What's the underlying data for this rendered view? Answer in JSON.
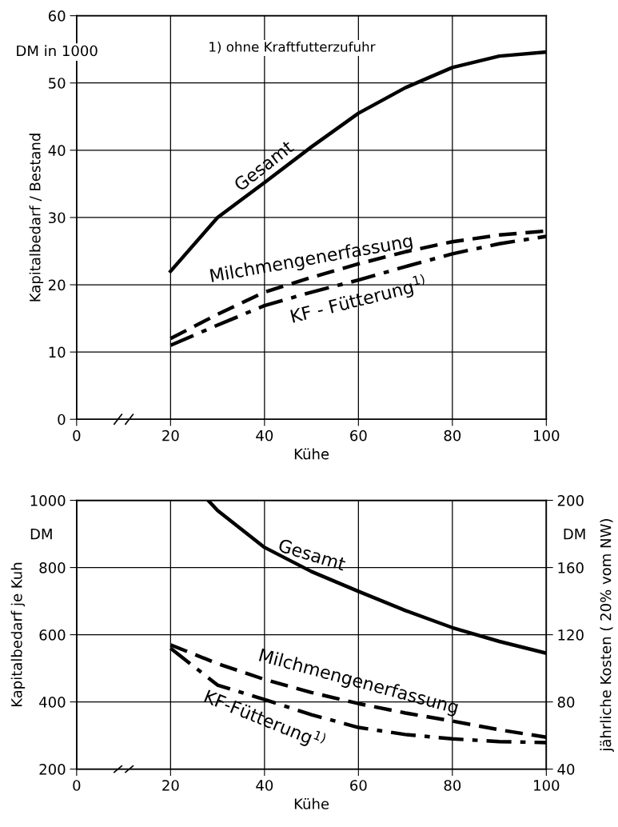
{
  "chart_data": [
    {
      "type": "line",
      "ylabel": "Kapitalbedarf / Bestand",
      "xlabel": "Kühe",
      "annotations": [
        "DM in 1000",
        "1) ohne Kraftfutterzufuhr"
      ],
      "xlim": [
        0,
        100
      ],
      "xticks": [
        0,
        20,
        40,
        60,
        80,
        100
      ],
      "ylim": [
        0,
        60
      ],
      "yticks": [
        0,
        10,
        20,
        30,
        40,
        50,
        60
      ],
      "grid": true,
      "series": [
        {
          "name": "Gesamt",
          "color": "#000000",
          "line_style": "solid",
          "x": [
            20,
            30,
            40,
            50,
            60,
            70,
            80,
            90,
            100
          ],
          "values": [
            22,
            30,
            35.2,
            40.5,
            45.5,
            49.3,
            52.3,
            54.0,
            54.6
          ]
        },
        {
          "name": "Milchmengenerfassung",
          "color": "#000000",
          "line_style": "dashed",
          "x": [
            20,
            30,
            40,
            50,
            60,
            70,
            80,
            90,
            100
          ],
          "values": [
            12,
            15.6,
            18.9,
            21.1,
            23.1,
            24.9,
            26.4,
            27.4,
            28.0
          ]
        },
        {
          "name": "KF - Fütterung$^{1)}$",
          "color": "#000000",
          "line_style": "dashdot",
          "x": [
            20,
            30,
            40,
            50,
            60,
            70,
            80,
            90,
            100
          ],
          "values": [
            11,
            14.0,
            16.9,
            18.9,
            20.7,
            22.7,
            24.6,
            26.1,
            27.2
          ]
        }
      ]
    },
    {
      "type": "line",
      "ylabel": "Kapitalbedarf je Kuh",
      "y2label": "jährliche Kosten ( 20% vom NW)",
      "xlabel": "Kühe",
      "annotations": [
        "DM",
        "DM"
      ],
      "xlim": [
        0,
        100
      ],
      "xticks": [
        0,
        20,
        40,
        60,
        80,
        100
      ],
      "ylim": [
        200,
        1000
      ],
      "yticks": [
        200,
        400,
        600,
        800,
        1000
      ],
      "y2lim": [
        40,
        200
      ],
      "y2ticks": [
        40,
        80,
        120,
        160,
        200
      ],
      "grid": true,
      "series": [
        {
          "name": "Gesamt",
          "color": "#000000",
          "line_style": "solid",
          "x": [
            28,
            30,
            40,
            50,
            60,
            70,
            80,
            90,
            100
          ],
          "values": [
            1000,
            970,
            860,
            788,
            729,
            672,
            621,
            580,
            545
          ]
        },
        {
          "name": "Milchmengenerfassung",
          "color": "#000000",
          "line_style": "dashed",
          "x": [
            20,
            30,
            40,
            50,
            60,
            70,
            80,
            90,
            100
          ],
          "values": [
            570,
            514,
            467,
            428,
            395,
            367,
            343,
            317,
            295
          ]
        },
        {
          "name": "KF-Fütterung$^{1)}$",
          "color": "#000000",
          "line_style": "dashdot",
          "x": [
            20,
            30,
            40,
            50,
            60,
            70,
            80,
            90,
            100
          ],
          "values": [
            560,
            450,
            407,
            362,
            324,
            303,
            290,
            282,
            279
          ]
        }
      ]
    }
  ]
}
